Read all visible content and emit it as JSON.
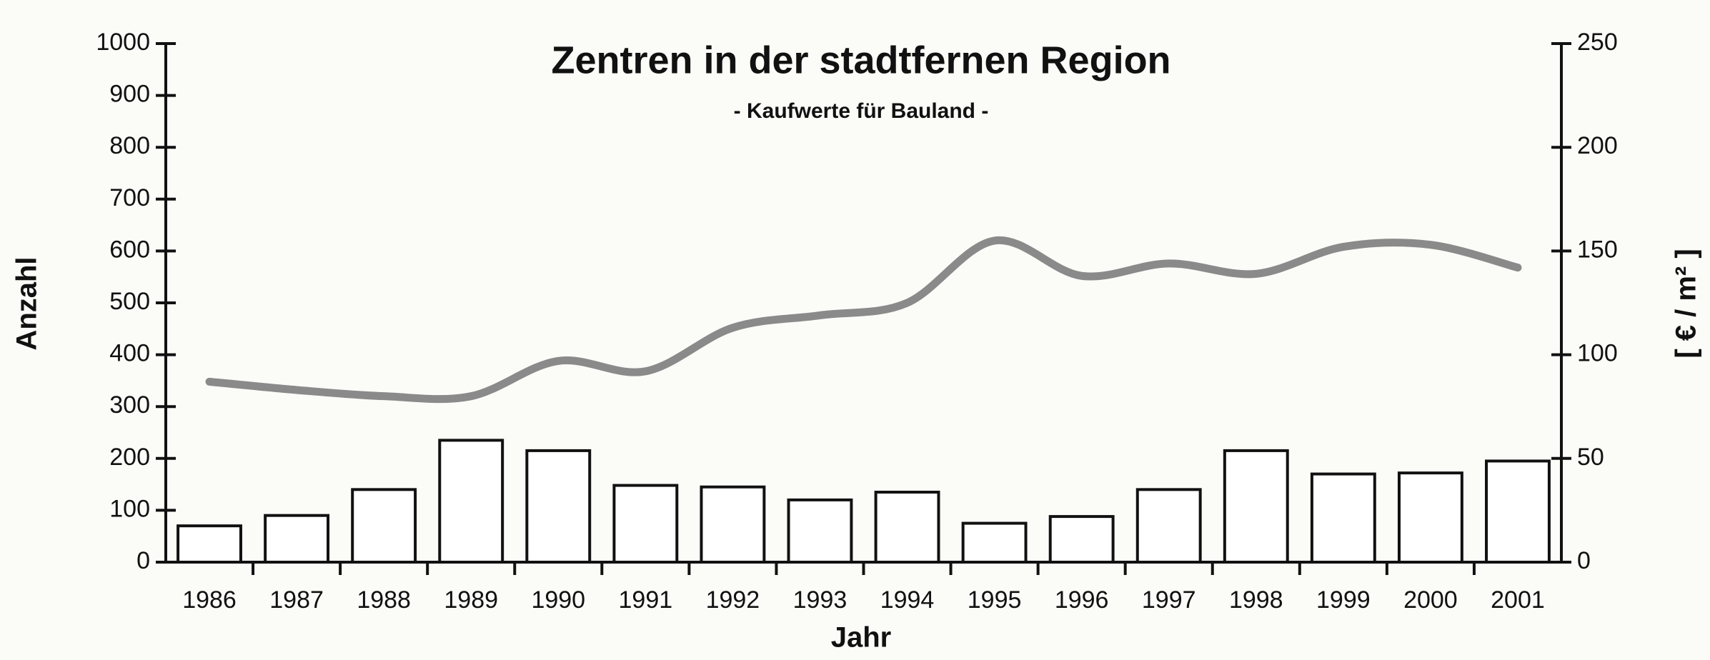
{
  "chart_data": {
    "type": "bar_line",
    "title": "Zentren in der stadtfernen Region",
    "subtitle": "- Kaufwerte für Bauland -",
    "x_label": "Jahr",
    "y_label": "Anzahl",
    "y2_label": "[ € / m² ]",
    "categories": [
      "1986",
      "1987",
      "1988",
      "1989",
      "1990",
      "1991",
      "1992",
      "1993",
      "1994",
      "1995",
      "1996",
      "1997",
      "1998",
      "1999",
      "2000",
      "2001"
    ],
    "series": [
      {
        "type": "bar",
        "color": "#ffffff",
        "values": [
          70,
          90,
          140,
          235,
          215,
          148,
          145,
          120,
          135,
          75,
          88,
          140,
          215,
          170,
          172,
          195
        ]
      },
      {
        "type": "line",
        "axis": "y2",
        "color": "#8a8a8a",
        "values": [
          87,
          83,
          80,
          80,
          97,
          92,
          113,
          119,
          125,
          155,
          138,
          144,
          139,
          152,
          153,
          142
        ]
      }
    ],
    "ylim": [
      0,
      1000
    ],
    "yticks": [
      0,
      100,
      200,
      300,
      400,
      500,
      600,
      700,
      800,
      900,
      1000
    ],
    "y2lim": [
      0,
      250
    ],
    "y2ticks": [
      0,
      50,
      100,
      150,
      200,
      250
    ]
  }
}
